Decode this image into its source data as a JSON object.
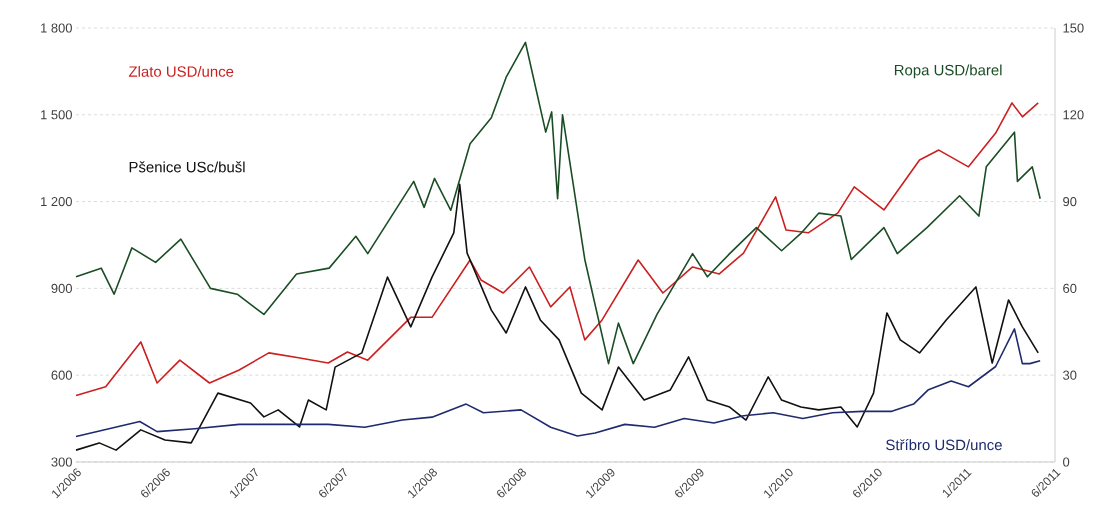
{
  "chart_data": {
    "type": "line",
    "xlim": [
      "2006-01",
      "2011-07"
    ],
    "xticks": [
      {
        "value": "2006-01",
        "label": "1/2006"
      },
      {
        "value": "2006-07",
        "label": "6/2006"
      },
      {
        "value": "2007-01",
        "label": "1/2007"
      },
      {
        "value": "2007-07",
        "label": "6/2007"
      },
      {
        "value": "2008-01",
        "label": "1/2008"
      },
      {
        "value": "2008-07",
        "label": "6/2008"
      },
      {
        "value": "2009-01",
        "label": "1/2009"
      },
      {
        "value": "2009-07",
        "label": "6/2009"
      },
      {
        "value": "2010-01",
        "label": "1/2010"
      },
      {
        "value": "2010-07",
        "label": "6/2010"
      },
      {
        "value": "2011-01",
        "label": "1/2011"
      },
      {
        "value": "2011-07",
        "label": "6/2011"
      }
    ],
    "ylim": [
      300,
      1800
    ],
    "yticks": [
      300,
      600,
      900,
      {
        "value": 1200,
        "label": "1 200"
      },
      {
        "value": 1500,
        "label": "1 500"
      },
      {
        "value": 1800,
        "label": "1 800"
      }
    ],
    "y2lim": [
      0,
      150
    ],
    "y2ticks": [
      0,
      30,
      60,
      90,
      120,
      150
    ],
    "grid": "y",
    "series": [
      {
        "name": "Zlato USD/unce",
        "color": "#cc1f1f",
        "x": [
          "2006-01-01",
          "2006-03-01",
          "2006-05-12",
          "2006-06-15",
          "2006-08-01",
          "2006-10-01",
          "2006-12-01",
          "2007-02-01",
          "2007-04-01",
          "2007-06-01",
          "2007-07-10",
          "2007-08-21",
          "2007-11-18",
          "2008-01-01",
          "2008-03-18",
          "2008-04-10",
          "2008-05-25",
          "2008-07-18",
          "2008-09-01",
          "2008-10-10",
          "2008-11-10",
          "2008-12-15",
          "2009-02-28",
          "2009-04-18",
          "2009-06-18",
          "2009-08-12",
          "2009-10-01",
          "2009-12-06",
          "2009-12-27",
          "2010-02-12",
          "2010-04-12",
          "2010-05-15",
          "2010-07-15",
          "2010-09-27",
          "2010-11-06",
          "2011-01-06",
          "2011-03-01",
          "2011-04-04",
          "2011-04-25",
          "2011-05-27"
        ],
        "values": [
          530,
          560,
          715,
          573,
          652,
          573,
          618,
          677,
          660,
          642,
          680,
          652,
          800,
          800,
          998,
          929,
          884,
          974,
          836,
          905,
          722,
          791,
          998,
          884,
          974,
          950,
          1022,
          1216,
          1102,
          1092,
          1161,
          1251,
          1171,
          1344,
          1378,
          1320,
          1437,
          1541,
          1493,
          1541
        ]
      },
      {
        "name": "Pšenice USc/bušl",
        "color": "#111111",
        "x": [
          "2006-01-01",
          "2006-02-18",
          "2006-03-22",
          "2006-05-12",
          "2006-07-01",
          "2006-08-24",
          "2006-10-18",
          "2006-12-24",
          "2007-01-21",
          "2007-02-20",
          "2007-04-03",
          "2007-04-21",
          "2007-05-27",
          "2007-06-15",
          "2007-08-09",
          "2007-10-01",
          "2007-11-18",
          "2008-01-01",
          "2008-02-15",
          "2008-02-27",
          "2008-03-12",
          "2008-05-01",
          "2008-06-01",
          "2008-07-10",
          "2008-08-10",
          "2008-09-18",
          "2008-11-03",
          "2008-12-15",
          "2009-01-18",
          "2009-03-10",
          "2009-05-03",
          "2009-06-10",
          "2009-07-18",
          "2009-09-03",
          "2009-10-06",
          "2009-11-21",
          "2009-12-18",
          "2010-01-27",
          "2010-03-03",
          "2010-04-18",
          "2010-05-21",
          "2010-06-24",
          "2010-07-21",
          "2010-08-18",
          "2010-09-27",
          "2010-11-21",
          "2011-01-21",
          "2011-02-24",
          "2011-03-27",
          "2011-04-25",
          "2011-05-27"
        ],
        "values": [
          341,
          366,
          341,
          411,
          376,
          366,
          538,
          504,
          456,
          480,
          421,
          514,
          480,
          628,
          677,
          939,
          767,
          939,
          1092,
          1260,
          1022,
          825,
          746,
          905,
          791,
          722,
          538,
          480,
          628,
          514,
          549,
          663,
          514,
          490,
          445,
          594,
          514,
          490,
          480,
          490,
          421,
          538,
          815,
          722,
          677,
          791,
          905,
          642,
          860,
          767,
          677
        ]
      },
      {
        "name": "Ropa USD/barel",
        "color": "#1a4d24",
        "axis": "y2",
        "x": [
          "2006-01-01",
          "2006-02-22",
          "2006-03-18",
          "2006-04-24",
          "2006-06-12",
          "2006-08-03",
          "2006-10-03",
          "2006-11-27",
          "2007-01-21",
          "2007-03-27",
          "2007-06-03",
          "2007-07-27",
          "2007-08-21",
          "2007-11-24",
          "2007-12-15",
          "2008-01-06",
          "2008-02-09",
          "2008-03-18",
          "2008-05-01",
          "2008-06-01",
          "2008-07-10",
          "2008-08-21",
          "2008-09-03",
          "2008-09-15",
          "2008-09-25",
          "2008-11-10",
          "2008-12-28",
          "2009-01-18",
          "2009-02-18",
          "2009-04-06",
          "2009-06-18",
          "2009-07-18",
          "2009-09-03",
          "2009-10-27",
          "2009-12-18",
          "2010-01-27",
          "2010-03-03",
          "2010-04-18",
          "2010-05-09",
          "2010-07-15",
          "2010-08-12",
          "2010-10-12",
          "2010-12-18",
          "2011-01-27",
          "2011-02-12",
          "2011-04-09",
          "2011-04-15",
          "2011-05-15",
          "2011-06-01"
        ],
        "values": [
          64,
          67,
          58,
          74,
          69,
          77,
          60,
          58,
          51,
          65,
          67,
          78,
          72,
          97,
          88,
          98,
          87,
          110,
          119,
          133,
          145,
          114,
          121,
          91,
          120,
          70,
          34,
          48,
          34,
          51,
          72,
          64,
          72,
          81,
          73,
          79,
          86,
          85,
          70,
          81,
          72,
          81,
          92,
          85,
          102,
          114,
          97,
          102,
          91
        ]
      },
      {
        "name": "Stříbro USD/unce",
        "color": "#1f2a6e",
        "axis": "y2",
        "x": [
          "2006-01-01",
          "2006-05-10",
          "2006-06-15",
          "2006-09-01",
          "2006-12-01",
          "2007-03-01",
          "2007-06-01",
          "2007-08-15",
          "2007-11-01",
          "2008-01-01",
          "2008-03-10",
          "2008-04-15",
          "2008-07-01",
          "2008-09-01",
          "2008-10-25",
          "2008-12-01",
          "2009-02-01",
          "2009-04-01",
          "2009-06-01",
          "2009-08-01",
          "2009-10-01",
          "2009-12-01",
          "2010-02-01",
          "2010-04-01",
          "2010-06-01",
          "2010-08-01",
          "2010-09-15",
          "2010-10-15",
          "2010-12-01",
          "2011-01-06",
          "2011-03-01",
          "2011-04-09",
          "2011-04-25",
          "2011-05-10",
          "2011-06-01"
        ],
        "values": [
          8.8,
          14,
          10.5,
          11.5,
          13,
          13,
          13,
          12,
          14.5,
          15.5,
          20,
          17,
          18,
          12,
          9,
          10,
          13,
          12,
          15,
          13.5,
          16,
          17,
          15,
          17,
          17.5,
          17.5,
          20,
          25,
          28,
          26,
          33,
          46,
          34,
          34,
          35
        ]
      }
    ]
  }
}
